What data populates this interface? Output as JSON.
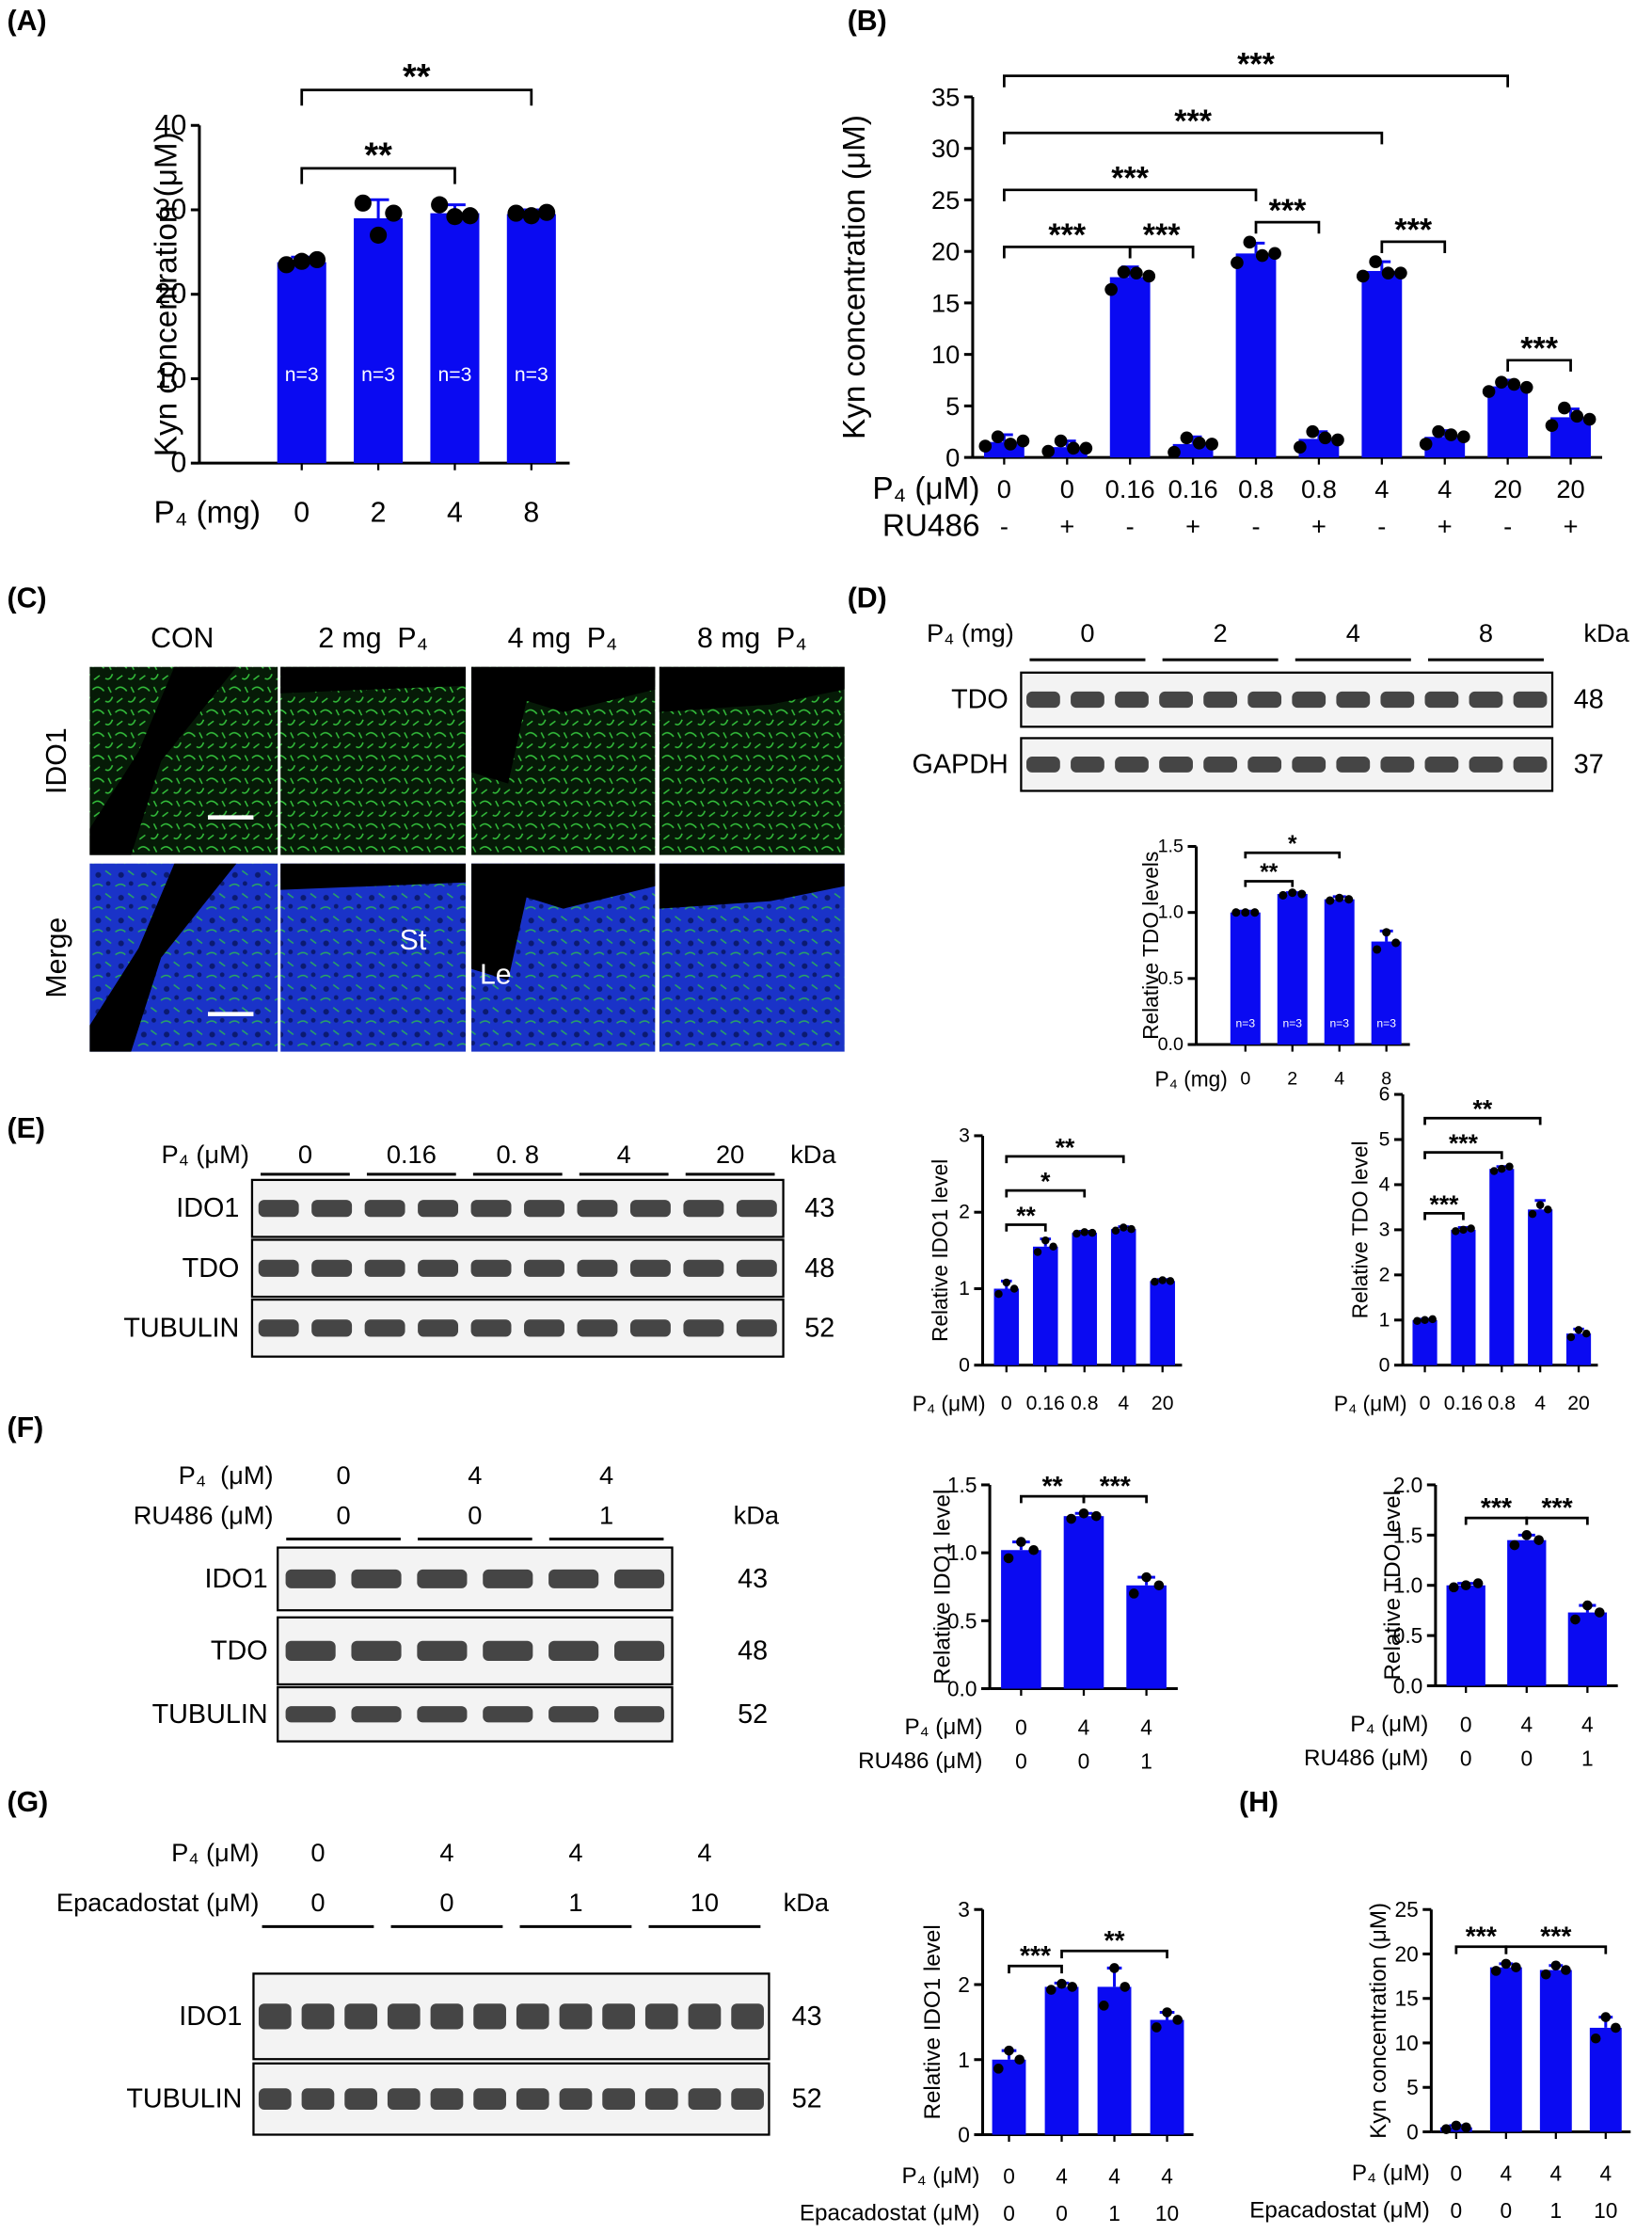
{
  "figure": {
    "panel_labels": [
      "(A)",
      "(B)",
      "(C)",
      "(D)",
      "(E)",
      "(F)",
      "(G)",
      "(H)"
    ],
    "micrograph": {
      "columns": [
        "CON",
        "2 mg  P₄",
        "4 mg  P₄",
        "8 mg  P₄"
      ],
      "rows": [
        "IDO1",
        "Merge"
      ],
      "annotations": [
        "St",
        "Le"
      ]
    },
    "blots": [
      {
        "conditions": [
          {
            "label": "P₄ (mg)",
            "groups": [
              "0",
              "2",
              "4",
              "8"
            ]
          }
        ],
        "unit": "kDa",
        "bands": [
          {
            "name": "TDO",
            "size": "48"
          },
          {
            "name": "GAPDH",
            "size": "37"
          }
        ]
      },
      {
        "conditions": [
          {
            "label": "P₄ (μM)",
            "groups": [
              "0",
              "0.16",
              "0. 8",
              "4",
              "20"
            ]
          }
        ],
        "unit": "kDa",
        "bands": [
          {
            "name": "IDO1",
            "size": "43"
          },
          {
            "name": "TDO",
            "size": "48"
          },
          {
            "name": "TUBULIN",
            "size": "52"
          }
        ]
      },
      {
        "conditions": [
          {
            "label": "P₄  (μM)",
            "groups": [
              "0",
              "4",
              "4"
            ]
          },
          {
            "label": "RU486 (μM)",
            "groups": [
              "0",
              "0",
              "1"
            ]
          }
        ],
        "unit": "kDa",
        "bands": [
          {
            "name": "IDO1",
            "size": "43"
          },
          {
            "name": "TDO",
            "size": "48"
          },
          {
            "name": "TUBULIN",
            "size": "52"
          }
        ]
      },
      {
        "conditions": [
          {
            "label": "P₄ (μM)",
            "groups": [
              "0",
              "4",
              "4",
              "4"
            ]
          },
          {
            "label": "Epacadostat (μM)",
            "groups": [
              "0",
              "0",
              "1",
              "10"
            ]
          }
        ],
        "unit": "kDa",
        "bands": [
          {
            "name": "IDO1",
            "size": "43"
          },
          {
            "name": "TUBULIN",
            "size": "52"
          }
        ]
      }
    ]
  },
  "chart_data": [
    {
      "type": "bar",
      "ylabel": "Kyn concentration (μM)",
      "xlabel": "P₄ (mg)",
      "categories": [
        "0",
        "2",
        "4",
        "8"
      ],
      "values": [
        23.8,
        29.0,
        29.6,
        29.5
      ],
      "errors": [
        0.6,
        2.2,
        1.0,
        0.5
      ],
      "points": [
        [
          23.5,
          23.9,
          24.1
        ],
        [
          30.8,
          27.0,
          29.6
        ],
        [
          30.6,
          29.2,
          29.3
        ],
        [
          29.6,
          29.3,
          29.7
        ]
      ],
      "bar_labels": [
        "n=3",
        "n=3",
        "n=3",
        "n=3"
      ],
      "color": "#0a0af2",
      "ylim": [
        0,
        40
      ],
      "yticks": [
        0,
        10,
        20,
        30,
        40
      ],
      "brackets": [
        {
          "between": [
            0,
            2
          ],
          "label": "**"
        },
        {
          "between": [
            0,
            3
          ],
          "label": "**"
        }
      ]
    },
    {
      "type": "bar",
      "ylabel": "Kyn concentration (μM)",
      "xlabel": "P₄ (μM)",
      "xlabel2": "RU486",
      "categories": [
        "0",
        "0",
        "0.16",
        "0.16",
        "0.8",
        "0.8",
        "4",
        "4",
        "20",
        "20"
      ],
      "categories2": [
        "-",
        "+",
        "-",
        "+",
        "-",
        "+",
        "-",
        "+",
        "-",
        "+"
      ],
      "values": [
        1.5,
        1.0,
        17.5,
        1.3,
        19.8,
        1.8,
        18.1,
        2.0,
        6.9,
        3.9
      ],
      "errors": [
        0.7,
        0.6,
        1.0,
        0.7,
        1.0,
        0.7,
        0.9,
        0.6,
        0.6,
        0.8
      ],
      "points": [
        [
          1.1,
          2.0,
          1.3,
          1.6
        ],
        [
          0.6,
          1.6,
          0.9,
          0.9
        ],
        [
          16.3,
          18.0,
          17.9,
          17.6
        ],
        [
          0.5,
          1.9,
          1.4,
          1.3
        ],
        [
          18.9,
          20.9,
          19.6,
          19.8
        ],
        [
          1.0,
          2.5,
          1.9,
          1.7
        ],
        [
          17.6,
          19.0,
          17.9,
          17.9
        ],
        [
          1.3,
          2.5,
          2.2,
          2.0
        ],
        [
          6.4,
          7.3,
          7.1,
          6.8
        ],
        [
          3.1,
          4.8,
          4.0,
          3.7
        ]
      ],
      "color": "#0a0af2",
      "ylim": [
        0,
        35
      ],
      "yticks": [
        0,
        5,
        10,
        15,
        20,
        25,
        30,
        35
      ],
      "brackets": [
        {
          "between": [
            0,
            2
          ],
          "label": "***"
        },
        {
          "between": [
            2,
            3
          ],
          "label": "***"
        },
        {
          "between": [
            0,
            4
          ],
          "label": "***"
        },
        {
          "between": [
            4,
            5
          ],
          "label": "***"
        },
        {
          "between": [
            0,
            6
          ],
          "label": "***"
        },
        {
          "between": [
            6,
            7
          ],
          "label": "***"
        },
        {
          "between": [
            0,
            8
          ],
          "label": "***"
        },
        {
          "between": [
            8,
            9
          ],
          "label": "***"
        }
      ]
    },
    {
      "type": "bar",
      "ylabel": "Relative TDO levels",
      "xlabel": "P₄ (mg)",
      "categories": [
        "0",
        "2",
        "4",
        "8"
      ],
      "values": [
        1.0,
        1.14,
        1.1,
        0.78
      ],
      "errors": [
        0.01,
        0.01,
        0.02,
        0.08
      ],
      "points": [
        [
          1.0,
          1.0,
          1.0
        ],
        [
          1.13,
          1.15,
          1.14
        ],
        [
          1.09,
          1.11,
          1.1
        ],
        [
          0.72,
          0.85,
          0.77
        ]
      ],
      "bar_labels": [
        "n=3",
        "n=3",
        "n=3",
        "n=3"
      ],
      "color": "#0a0af2",
      "ylim": [
        0,
        1.5
      ],
      "yticks": [
        {
          "value": 0,
          "label": "0.0"
        },
        0.5,
        {
          "value": 1,
          "label": "1.0"
        },
        1.5
      ],
      "brackets": [
        {
          "between": [
            0,
            1
          ],
          "label": "**"
        },
        {
          "between": [
            0,
            2
          ],
          "label": "*"
        }
      ]
    },
    {
      "type": "bar",
      "ylabel": "Relative IDO1 level",
      "xlabel": "P₄ (μM)",
      "categories": [
        "0",
        "0.16",
        "0.8",
        "4",
        "20"
      ],
      "values": [
        1.0,
        1.55,
        1.73,
        1.78,
        1.1
      ],
      "errors": [
        0.1,
        0.1,
        0.02,
        0.03,
        0.02
      ],
      "points": [
        [
          0.93,
          1.08,
          1.0
        ],
        [
          1.48,
          1.63,
          1.55
        ],
        [
          1.72,
          1.74,
          1.73
        ],
        [
          1.76,
          1.8,
          1.78
        ],
        [
          1.09,
          1.11,
          1.1
        ]
      ],
      "color": "#0a0af2",
      "ylim": [
        0,
        3
      ],
      "yticks": [
        0,
        1,
        2,
        3
      ],
      "brackets": [
        {
          "between": [
            0,
            1
          ],
          "label": "**"
        },
        {
          "between": [
            0,
            2
          ],
          "label": "*"
        },
        {
          "between": [
            0,
            3
          ],
          "label": "**"
        }
      ]
    },
    {
      "type": "bar",
      "ylabel": "Relative TDO level",
      "xlabel": "P₄ (μM)",
      "categories": [
        "0",
        "0.16",
        "0.8",
        "4",
        "20"
      ],
      "values": [
        1.0,
        3.0,
        4.35,
        3.45,
        0.7
      ],
      "errors": [
        0.02,
        0.05,
        0.05,
        0.2,
        0.1
      ],
      "points": [
        [
          0.98,
          1.0,
          1.02
        ],
        [
          2.97,
          3.0,
          3.03
        ],
        [
          4.3,
          4.35,
          4.4
        ],
        [
          3.35,
          3.55,
          3.45
        ],
        [
          0.62,
          0.78,
          0.7
        ]
      ],
      "color": "#0a0af2",
      "ylim": [
        0,
        6
      ],
      "yticks": [
        0,
        1,
        2,
        3,
        4,
        5,
        6
      ],
      "brackets": [
        {
          "between": [
            0,
            1
          ],
          "label": "***"
        },
        {
          "between": [
            0,
            2
          ],
          "label": "***"
        },
        {
          "between": [
            0,
            3
          ],
          "label": "**"
        }
      ]
    },
    {
      "type": "bar",
      "ylabel": "Relative IDO1 level",
      "xlabel": "P₄ (μM)",
      "xlabel2": "RU486 (μM)",
      "categories": [
        "0",
        "4",
        "4"
      ],
      "categories2": [
        "0",
        "0",
        "1"
      ],
      "values": [
        1.02,
        1.27,
        0.76
      ],
      "errors": [
        0.06,
        0.02,
        0.06
      ],
      "points": [
        [
          0.96,
          1.08,
          1.02
        ],
        [
          1.25,
          1.29,
          1.27
        ],
        [
          0.7,
          0.82,
          0.76
        ]
      ],
      "color": "#0a0af2",
      "ylim": [
        0,
        1.5
      ],
      "yticks": [
        {
          "value": 0,
          "label": "0.0"
        },
        0.5,
        {
          "value": 1,
          "label": "1.0"
        },
        1.5
      ],
      "brackets": [
        {
          "between": [
            0,
            1
          ],
          "label": "**"
        },
        {
          "between": [
            1,
            2
          ],
          "label": "***"
        }
      ]
    },
    {
      "type": "bar",
      "ylabel": "Relative TDO level",
      "xlabel": "P₄ (μM)",
      "xlabel2": "RU486 (μM)",
      "categories": [
        "0",
        "4",
        "4"
      ],
      "categories2": [
        "0",
        "0",
        "1"
      ],
      "values": [
        1.0,
        1.45,
        0.73
      ],
      "errors": [
        0.02,
        0.05,
        0.07
      ],
      "points": [
        [
          0.98,
          1.0,
          1.02
        ],
        [
          1.4,
          1.5,
          1.45
        ],
        [
          0.66,
          0.8,
          0.73
        ]
      ],
      "color": "#0a0af2",
      "ylim": [
        0,
        2
      ],
      "yticks": [
        {
          "value": 0,
          "label": "0.0"
        },
        0.5,
        {
          "value": 1,
          "label": "1.0"
        },
        1.5,
        {
          "value": 2,
          "label": "2.0"
        }
      ],
      "brackets": [
        {
          "between": [
            0,
            1
          ],
          "label": "***"
        },
        {
          "between": [
            1,
            2
          ],
          "label": "***"
        }
      ]
    },
    {
      "type": "bar",
      "ylabel": "Relative IDO1 level",
      "xlabel": "P₄ (μM)",
      "xlabel2": "Epacadostat (μM)",
      "categories": [
        "0",
        "4",
        "4",
        "4"
      ],
      "categories2": [
        "0",
        "0",
        "1",
        "10"
      ],
      "values": [
        1.0,
        1.97,
        1.97,
        1.53
      ],
      "errors": [
        0.12,
        0.05,
        0.25,
        0.1
      ],
      "points": [
        [
          0.88,
          1.12,
          1.0
        ],
        [
          1.93,
          2.01,
          1.97
        ],
        [
          1.72,
          2.22,
          1.97
        ],
        [
          1.43,
          1.63,
          1.53
        ]
      ],
      "color": "#0a0af2",
      "ylim": [
        0,
        3
      ],
      "yticks": [
        0,
        1,
        2,
        3
      ],
      "brackets": [
        {
          "between": [
            0,
            1
          ],
          "label": "***"
        },
        {
          "between": [
            1,
            3
          ],
          "label": "**"
        }
      ]
    },
    {
      "type": "bar",
      "ylabel": "Kyn concentration (μM)",
      "xlabel": "P₄ (μM)",
      "xlabel2": "Epacadostat (μM)",
      "categories": [
        "0",
        "4",
        "4",
        "4"
      ],
      "categories2": [
        "0",
        "0",
        "1",
        "10"
      ],
      "values": [
        0.5,
        18.5,
        18.2,
        11.7
      ],
      "errors": [
        0.2,
        0.4,
        0.5,
        1.2
      ],
      "points": [
        [
          0.3,
          0.7,
          0.5
        ],
        [
          18.1,
          18.9,
          18.5
        ],
        [
          17.7,
          18.7,
          18.2
        ],
        [
          10.5,
          12.9,
          11.7
        ]
      ],
      "color": "#0a0af2",
      "ylim": [
        0,
        25
      ],
      "yticks": [
        0,
        5,
        10,
        15,
        20,
        25
      ],
      "brackets": [
        {
          "between": [
            0,
            1
          ],
          "label": "***"
        },
        {
          "between": [
            1,
            3
          ],
          "label": "***"
        }
      ]
    }
  ]
}
